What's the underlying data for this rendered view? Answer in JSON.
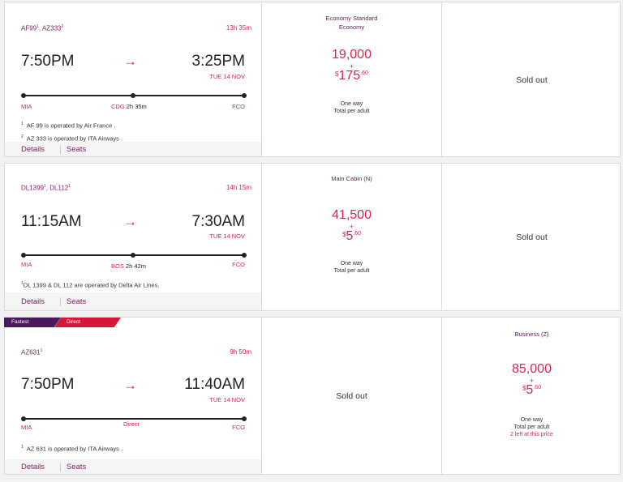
{
  "flights": [
    {
      "codes": "AF99",
      "codes_sup1": "1",
      "codes_b": ", AZ333",
      "codes_sup2": "2",
      "duration": "13h 35m",
      "dep_time": "7:50PM",
      "arr_time": "3:25PM",
      "arrow": "→",
      "arr_date": "TUE 14 NOV",
      "origin": "MIA",
      "stop_code": "CDG",
      "stop_time": "2h  35m",
      "dest": "FCO",
      "notes": [
        {
          "sup": "1",
          "text": "AF 99 is operated by Air France ."
        },
        {
          "sup": "2",
          "text": "AZ 333 is operated by ITA Airways ."
        }
      ],
      "details_label": "Details",
      "seats_label": "Seats",
      "fare": {
        "cabin_line1": "Economy Standard",
        "cabin_line2": "Economy",
        "points": "19,000",
        "plus": "+",
        "currency": "$",
        "cash": "175",
        "cents": ".60",
        "one_way": "One way",
        "per_adult": "Total per adult"
      },
      "col2_status": "Sold out"
    },
    {
      "codes": "DL1399",
      "codes_sup1": "1",
      "codes_b": ", DL112",
      "codes_sup2": "1",
      "duration": "14h 15m",
      "dep_time": "11:15AM",
      "arr_time": "7:30AM",
      "arrow": "→",
      "arr_date": "TUE 14 NOV",
      "origin": "MIA",
      "stop_code": "BOS",
      "stop_time": "2h  42m",
      "dest": "FCO",
      "notes": [
        {
          "sup": "1",
          "text": "DL 1399 & DL 112 are operated by Delta Air Lines."
        }
      ],
      "details_label": "Details",
      "seats_label": "Seats",
      "fare": {
        "cabin_line1": "Main Cabin (N)",
        "points": "41,500",
        "plus": "+",
        "currency": "$",
        "cash": "5",
        "cents": ".60",
        "one_way": "One way",
        "per_adult": "Total per adult"
      },
      "col2_status": "Sold out"
    },
    {
      "tag_fastest": "Fastest",
      "tag_direct": "Direct",
      "codes": "AZ631",
      "codes_sup1": "1",
      "duration": "9h 50m",
      "dep_time": "7:50PM",
      "arr_time": "11:40AM",
      "arrow": "→",
      "arr_date": "TUE 14 NOV",
      "origin": "MIA",
      "direct_label": "Direct",
      "dest": "FCO",
      "notes": [
        {
          "sup": "1",
          "text": "AZ 631 is operated by ITA Airways ."
        }
      ],
      "details_label": "Details",
      "seats_label": "Seats",
      "col1_status": "Sold out",
      "fare": {
        "cabin_line1": "Business (Z)",
        "points": "85,000",
        "plus": "+",
        "currency": "$",
        "cash": "5",
        "cents": ".60",
        "one_way": "One way",
        "per_adult": "Total per adult",
        "seats_left": "2 left at this price"
      }
    }
  ],
  "colors": {
    "accent_red": "#d9254e",
    "brand_purple": "#7a1f5c",
    "tag_purple": "#4b1a5c",
    "tag_red": "#d9163a"
  },
  "icons": {
    "arrow": "right-arrow-icon",
    "route_dot": "route-stop-dot-icon"
  }
}
